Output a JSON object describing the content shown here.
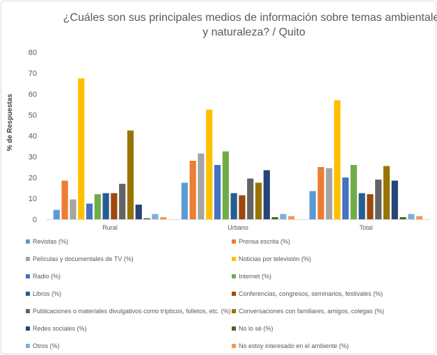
{
  "chart_data": {
    "type": "bar",
    "title": "¿Cuáles son sus principales medios de información sobre temas ambientales y naturaleza? / Quito",
    "title_lines": [
      "¿Cuáles son sus principales medios de información sobre temas ambientales",
      "y naturaleza? / Quito"
    ],
    "ylabel": "% de Respuestas",
    "xlabel": "",
    "ylim": [
      0,
      80
    ],
    "yticks": [
      0,
      10,
      20,
      30,
      40,
      50,
      60,
      70,
      80
    ],
    "grid": false,
    "legend_position": "bottom",
    "categories": [
      "Rural",
      "Urbano",
      "Total"
    ],
    "series": [
      {
        "name": "Revistas (%)",
        "color": "#5b9bd5",
        "values": [
          4.5,
          17.5,
          13.5
        ]
      },
      {
        "name": "Prensa escrita (%)",
        "color": "#ed7d31",
        "values": [
          18.5,
          28,
          25
        ]
      },
      {
        "name": "Películas y documentales de TV (%)",
        "color": "#a5a5a5",
        "values": [
          9.5,
          31.5,
          24.5
        ]
      },
      {
        "name": "Noticias por televisión (%)",
        "color": "#ffc000",
        "values": [
          67.5,
          52.5,
          57
        ]
      },
      {
        "name": "Radio (%)",
        "color": "#4472c4",
        "values": [
          7.5,
          26,
          20
        ]
      },
      {
        "name": "Internet (%)",
        "color": "#70ad47",
        "values": [
          12,
          32.5,
          26
        ]
      },
      {
        "name": "Libros (%)",
        "color": "#255e91",
        "values": [
          12.5,
          12.5,
          12.5
        ]
      },
      {
        "name": "Conferencias, congresos, seminarios, festivales (%)",
        "color": "#9e480e",
        "values": [
          12.5,
          11.5,
          12
        ]
      },
      {
        "name": "Publicaciones o materiales divulgativos como trípticos, folletos, etc. (%)",
        "color": "#636363",
        "values": [
          17,
          19.5,
          19
        ]
      },
      {
        "name": "Conversaciones con familiares, amigos, colegas (%)",
        "color": "#997300",
        "values": [
          42.5,
          17.5,
          25.5
        ]
      },
      {
        "name": "Redes sociales (%)",
        "color": "#264478",
        "values": [
          7,
          23.5,
          18.5
        ]
      },
      {
        "name": "No lo sé (%)",
        "color": "#43682b",
        "values": [
          0.5,
          1,
          1
        ]
      },
      {
        "name": "Otros (%)",
        "color": "#7cafdd",
        "values": [
          2.5,
          2.5,
          2.5
        ]
      },
      {
        "name": "No estoy interesado en el ambiente (%)",
        "color": "#f1975a",
        "values": [
          1,
          1.5,
          1.5
        ]
      }
    ]
  }
}
